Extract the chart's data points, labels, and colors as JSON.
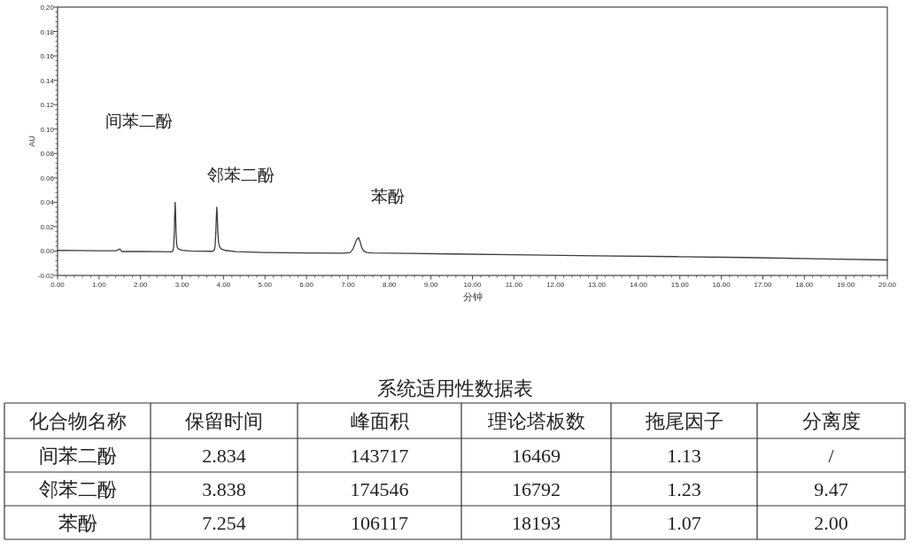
{
  "chart_data": [
    {
      "type": "line",
      "xlabel": "分钟",
      "ylabel": "AU",
      "x": [
        0,
        0.5,
        1.0,
        1.4,
        1.47,
        1.5,
        1.53,
        1.56,
        1.6,
        2.0,
        2.5,
        2.74,
        2.78,
        2.8,
        2.815,
        2.825,
        2.834,
        2.845,
        2.855,
        2.87,
        2.89,
        2.93,
        3.0,
        3.2,
        3.5,
        3.74,
        3.78,
        3.8,
        3.815,
        3.828,
        3.838,
        3.85,
        3.862,
        3.88,
        3.91,
        3.96,
        4.05,
        4.3,
        5.0,
        6.0,
        6.9,
        7.05,
        7.12,
        7.17,
        7.21,
        7.254,
        7.29,
        7.33,
        7.38,
        7.45,
        7.6,
        8.5,
        9.5,
        11.0,
        13.0,
        15.0,
        16.6,
        18.5,
        20.0
      ],
      "values": [
        0.0005,
        0.0004,
        0.0003,
        0.0002,
        0.0012,
        0.0017,
        0.0005,
        -0.0007,
        -0.0004,
        -0.0004,
        -0.0005,
        -0.0006,
        0.0,
        0.004,
        0.016,
        0.032,
        0.04,
        0.031,
        0.016,
        0.006,
        0.0025,
        0.0015,
        0.0006,
        0.0001,
        -0.0001,
        -0.0002,
        0.001,
        0.005,
        0.016,
        0.029,
        0.036,
        0.029,
        0.016,
        0.007,
        0.003,
        0.0015,
        0.0005,
        -0.0005,
        -0.0012,
        -0.0016,
        -0.0018,
        -0.0012,
        0.0015,
        0.006,
        0.0095,
        0.011,
        0.008,
        0.003,
        0.0,
        -0.0012,
        -0.0016,
        -0.002,
        -0.0024,
        -0.003,
        -0.0039,
        -0.0046,
        -0.0053,
        -0.0065,
        -0.0073
      ],
      "color": "#3c3c3c",
      "xlim": [
        0,
        20
      ],
      "ylim": [
        -0.02,
        0.2
      ],
      "xticks": [
        {
          "value": 0,
          "label": "0.00"
        },
        {
          "value": 1,
          "label": "1.00"
        },
        {
          "value": 2,
          "label": "2.00"
        },
        {
          "value": 3,
          "label": "3.00"
        },
        {
          "value": 4,
          "label": "4.00"
        },
        {
          "value": 5,
          "label": "5.00"
        },
        {
          "value": 6,
          "label": "6.00"
        },
        {
          "value": 7,
          "label": "7.00"
        },
        {
          "value": 8,
          "label": "8.00"
        },
        {
          "value": 9,
          "label": "9.00"
        },
        {
          "value": 10,
          "label": "10.00"
        },
        {
          "value": 11,
          "label": "11.00"
        },
        {
          "value": 12,
          "label": "12.00"
        },
        {
          "value": 13,
          "label": "13.00"
        },
        {
          "value": 14,
          "label": "14.00"
        },
        {
          "value": 15,
          "label": "15.00"
        },
        {
          "value": 16,
          "label": "16.00"
        },
        {
          "value": 17,
          "label": "17.00"
        },
        {
          "value": 18,
          "label": "18.00"
        },
        {
          "value": 19,
          "label": "19.00"
        },
        {
          "value": 20,
          "label": "20.00"
        }
      ],
      "yticks": [
        {
          "value": -0.02,
          "label": "-0.02"
        },
        {
          "value": 0,
          "label": "0.00"
        },
        {
          "value": 0.02,
          "label": "0.02"
        },
        {
          "value": 0.04,
          "label": "0.04"
        },
        {
          "value": 0.06,
          "label": "0.06"
        },
        {
          "value": 0.08,
          "label": "0.08"
        },
        {
          "value": 0.1,
          "label": "0.10"
        },
        {
          "value": 0.12,
          "label": "0.12"
        },
        {
          "value": 0.14,
          "label": "0.14"
        },
        {
          "value": 0.16,
          "label": "0.16"
        },
        {
          "value": 0.18,
          "label": "0.18"
        },
        {
          "value": 0.2,
          "label": "0.20"
        }
      ],
      "annotations": [
        "间苯二酚",
        "邻苯二酚",
        "苯酚"
      ]
    },
    {
      "type": "other",
      "title": "系统适用性数据表",
      "ylabel": "化合物名称",
      "categories": [
        "保留时间",
        "峰面积",
        "理论塔板数",
        "拖尾因子",
        "分离度"
      ],
      "y_categories": [
        "间苯二酚",
        "邻苯二酚",
        "苯酚"
      ],
      "cell_labels": [
        [
          "2.834",
          "143717",
          "16469",
          "1.13",
          "/"
        ],
        [
          "3.838",
          "174546",
          "16792",
          "1.23",
          "9.47"
        ],
        [
          "7.254",
          "106117",
          "18193",
          "1.07",
          "2.00"
        ]
      ]
    }
  ]
}
